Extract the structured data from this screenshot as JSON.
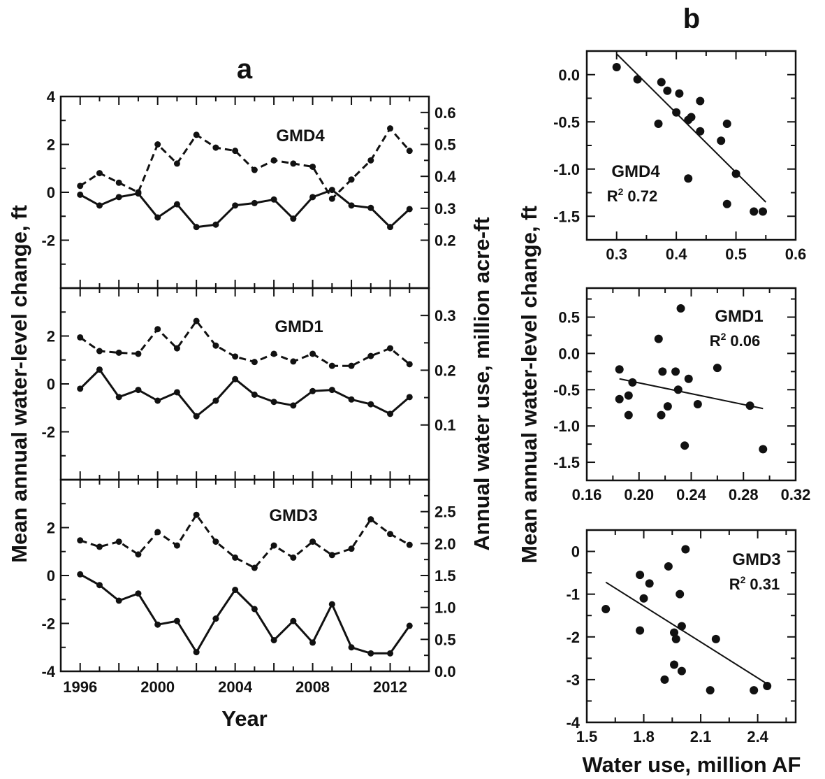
{
  "colors": {
    "ink": "#111111",
    "background": "#ffffff"
  },
  "chart_data": [
    {
      "id": "a",
      "type": "line",
      "panel_letter": "a",
      "xlabel": "Year",
      "ylabel": "Mean annual water-level change, ft",
      "ylabel_right": "Annual water use, million acre-ft",
      "xlim": [
        1995,
        2014
      ],
      "x_ticks": [
        1996,
        2000,
        2004,
        2008,
        2012
      ],
      "x": [
        1996,
        1997,
        1998,
        1999,
        2000,
        2001,
        2002,
        2003,
        2004,
        2005,
        2006,
        2007,
        2008,
        2009,
        2010,
        2011,
        2012,
        2013
      ],
      "legend": "none",
      "grid": false,
      "subplots": [
        {
          "name": "GMD4",
          "ylim": [
            -4,
            4
          ],
          "y_ticks": [
            -2,
            0,
            2,
            4
          ],
          "y2lim": [
            0.05,
            0.65
          ],
          "y2_ticks": [
            0.2,
            0.3,
            0.4,
            0.5,
            0.6
          ],
          "series": [
            {
              "style": "solid",
              "axis": "left",
              "values": [
                -0.1,
                -0.55,
                -0.2,
                -0.05,
                -1.05,
                -0.5,
                -1.45,
                -1.35,
                -0.55,
                -0.45,
                -0.3,
                -1.1,
                -0.2,
                0.1,
                -0.55,
                -0.65,
                -1.45,
                -0.7
              ]
            },
            {
              "style": "dashed",
              "axis": "right",
              "values": [
                0.37,
                0.41,
                0.38,
                0.35,
                0.5,
                0.44,
                0.53,
                0.49,
                0.48,
                0.42,
                0.45,
                0.44,
                0.43,
                0.33,
                0.39,
                0.45,
                0.55,
                0.48
              ]
            }
          ]
        },
        {
          "name": "GMD1",
          "ylim": [
            -4,
            4
          ],
          "y_ticks": [
            -2,
            0,
            2
          ],
          "y2lim": [
            0.0,
            0.35
          ],
          "y2_ticks": [
            0.1,
            0.2,
            0.3
          ],
          "series": [
            {
              "style": "solid",
              "axis": "left",
              "values": [
                -0.2,
                0.6,
                -0.55,
                -0.25,
                -0.7,
                -0.35,
                -1.35,
                -0.7,
                0.2,
                -0.45,
                -0.75,
                -0.9,
                -0.3,
                -0.25,
                -0.65,
                -0.85,
                -1.25,
                -0.55
              ]
            },
            {
              "style": "dashed",
              "axis": "right",
              "values": [
                0.26,
                0.235,
                0.232,
                0.23,
                0.275,
                0.24,
                0.29,
                0.245,
                0.225,
                0.215,
                0.23,
                0.216,
                0.23,
                0.208,
                0.208,
                0.226,
                0.24,
                0.211
              ]
            }
          ]
        },
        {
          "name": "GMD3",
          "ylim": [
            -4,
            4
          ],
          "y_ticks": [
            -4,
            -2,
            0,
            2
          ],
          "y2lim": [
            0.0,
            3.0
          ],
          "y2_ticks": [
            0.0,
            0.5,
            1.0,
            1.5,
            2.0,
            2.5
          ],
          "series": [
            {
              "style": "solid",
              "axis": "left",
              "values": [
                0.05,
                -0.4,
                -1.05,
                -0.75,
                -2.05,
                -1.9,
                -3.2,
                -1.8,
                -0.6,
                -1.4,
                -2.7,
                -1.9,
                -2.8,
                -1.2,
                -3.0,
                -3.25,
                -3.25,
                -2.1
              ]
            },
            {
              "style": "dashed",
              "axis": "right",
              "values": [
                2.05,
                1.95,
                2.03,
                1.83,
                2.18,
                1.97,
                2.45,
                2.03,
                1.78,
                1.62,
                1.97,
                1.78,
                2.03,
                1.82,
                1.92,
                2.38,
                2.15,
                1.98
              ]
            }
          ]
        }
      ]
    },
    {
      "id": "b1",
      "type": "scatter",
      "panel_letter": "b",
      "name": "GMD4",
      "r2_prefix": "R",
      "r2_exponent": "2",
      "r2_value": "0.72",
      "xlim": [
        0.25,
        0.6
      ],
      "x_ticks": [
        0.3,
        0.4,
        0.5,
        0.6
      ],
      "x_tick_labels": [
        "0.3",
        "0.4",
        "0.5",
        "0.6"
      ],
      "ylim": [
        -1.75,
        0.25
      ],
      "y_ticks": [
        -1.5,
        -1.0,
        -0.5,
        0.0
      ],
      "y_tick_labels": [
        "-1.5",
        "-1.0",
        "-0.5",
        "0.0"
      ],
      "points": [
        [
          0.3,
          0.08
        ],
        [
          0.335,
          -0.05
        ],
        [
          0.37,
          -0.52
        ],
        [
          0.375,
          -0.08
        ],
        [
          0.385,
          -0.17
        ],
        [
          0.4,
          -0.4
        ],
        [
          0.405,
          -0.2
        ],
        [
          0.42,
          -0.48
        ],
        [
          0.425,
          -0.45
        ],
        [
          0.44,
          -0.6
        ],
        [
          0.44,
          -0.28
        ],
        [
          0.42,
          -1.1
        ],
        [
          0.475,
          -0.7
        ],
        [
          0.485,
          -0.52
        ],
        [
          0.485,
          -1.37
        ],
        [
          0.5,
          -1.05
        ],
        [
          0.53,
          -1.45
        ],
        [
          0.545,
          -1.45
        ]
      ],
      "fit": [
        [
          0.3,
          0.22
        ],
        [
          0.55,
          -1.35
        ]
      ]
    },
    {
      "id": "b2",
      "type": "scatter",
      "name": "GMD1",
      "ylabel": "Mean annual water-level change, ft",
      "r2_prefix": "R",
      "r2_exponent": "2",
      "r2_value": "0.06",
      "xlim": [
        0.16,
        0.32
      ],
      "x_ticks": [
        0.16,
        0.2,
        0.24,
        0.28,
        0.32
      ],
      "x_tick_labels": [
        "0.16",
        "0.20",
        "0.24",
        "0.28",
        "0.32"
      ],
      "ylim": [
        -1.75,
        0.9
      ],
      "y_ticks": [
        -1.5,
        -1.0,
        -0.5,
        0.0,
        0.5
      ],
      "y_tick_labels": [
        "-1.5",
        "-1.0",
        "-0.5",
        "0.0",
        "0.5"
      ],
      "points": [
        [
          0.185,
          -0.22
        ],
        [
          0.185,
          -0.63
        ],
        [
          0.192,
          -0.58
        ],
        [
          0.192,
          -0.85
        ],
        [
          0.195,
          -0.4
        ],
        [
          0.215,
          0.2
        ],
        [
          0.217,
          -0.85
        ],
        [
          0.218,
          -0.25
        ],
        [
          0.222,
          -0.73
        ],
        [
          0.228,
          -0.25
        ],
        [
          0.23,
          -0.5
        ],
        [
          0.232,
          0.62
        ],
        [
          0.235,
          -1.27
        ],
        [
          0.238,
          -0.35
        ],
        [
          0.245,
          -0.7
        ],
        [
          0.26,
          -0.2
        ],
        [
          0.285,
          -0.72
        ],
        [
          0.295,
          -1.32
        ]
      ],
      "fit": [
        [
          0.185,
          -0.35
        ],
        [
          0.295,
          -0.76
        ]
      ]
    },
    {
      "id": "b3",
      "type": "scatter",
      "name": "GMD3",
      "xlabel": "Water use, million AF",
      "r2_prefix": "R",
      "r2_exponent": "2",
      "r2_value": "0.31",
      "xlim": [
        1.5,
        2.6
      ],
      "x_ticks": [
        1.5,
        1.8,
        2.1,
        2.4
      ],
      "x_tick_labels": [
        "1.5",
        "1.8",
        "2.1",
        "2.4"
      ],
      "ylim": [
        -4,
        0.5
      ],
      "y_ticks": [
        -4,
        -3,
        -2,
        -1,
        0
      ],
      "y_tick_labels": [
        "-4",
        "-3",
        "-2",
        "-1",
        "0"
      ],
      "points": [
        [
          1.6,
          -1.35
        ],
        [
          1.78,
          -0.55
        ],
        [
          1.78,
          -1.85
        ],
        [
          1.8,
          -1.1
        ],
        [
          1.83,
          -0.75
        ],
        [
          1.91,
          -3.0
        ],
        [
          1.93,
          -0.35
        ],
        [
          1.96,
          -1.9
        ],
        [
          1.96,
          -2.65
        ],
        [
          1.97,
          -2.05
        ],
        [
          1.99,
          -1.0
        ],
        [
          2.0,
          -2.8
        ],
        [
          2.0,
          -1.75
        ],
        [
          2.02,
          0.05
        ],
        [
          2.15,
          -3.25
        ],
        [
          2.18,
          -2.05
        ],
        [
          2.38,
          -3.25
        ],
        [
          2.45,
          -3.15
        ]
      ],
      "fit": [
        [
          1.6,
          -0.72
        ],
        [
          2.45,
          -3.1
        ]
      ]
    }
  ]
}
